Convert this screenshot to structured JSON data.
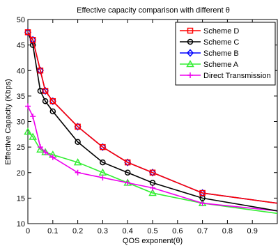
{
  "chart_data": {
    "type": "line",
    "title": "Effective capacity comparison with different θ",
    "xlabel": "QOS exponent(θ)",
    "ylabel": "Effective Capacity (Kbps)",
    "xlim": [
      0,
      1
    ],
    "ylim": [
      10,
      50
    ],
    "x_ticks": [
      0,
      0.1,
      0.2,
      0.3,
      0.4,
      0.5,
      0.6,
      0.7,
      0.8,
      0.9
    ],
    "x_tick_labels": [
      "0",
      "0.1",
      "0.2",
      "0.3",
      "0.4",
      "0.5",
      "0.6",
      "0.7",
      "0.8",
      "0.9"
    ],
    "y_ticks": [
      10,
      15,
      20,
      25,
      30,
      35,
      40,
      45,
      50
    ],
    "y_tick_labels": [
      "10",
      "15",
      "20",
      "25",
      "30",
      "35",
      "40",
      "45",
      "50"
    ],
    "grid": false,
    "legend_position": "top-right",
    "series": [
      {
        "name": "Scheme D",
        "color": "#ff0000",
        "marker": "square",
        "x": [
          0,
          0.02,
          0.05,
          0.07,
          0.1,
          0.2,
          0.3,
          0.4,
          0.5,
          0.7,
          1.0
        ],
        "y": [
          47.5,
          46.0,
          40.0,
          36.0,
          34.0,
          29.0,
          25.0,
          22.0,
          20.0,
          16.0,
          14.0
        ]
      },
      {
        "name": "Scheme C",
        "color": "#000000",
        "marker": "circle",
        "x": [
          0,
          0.02,
          0.05,
          0.07,
          0.1,
          0.2,
          0.3,
          0.4,
          0.5,
          0.7,
          1.0
        ],
        "y": [
          47.5,
          45.0,
          36.0,
          34.0,
          32.0,
          26.0,
          22.0,
          20.0,
          18.0,
          15.0,
          12.5
        ]
      },
      {
        "name": "Scheme B",
        "color": "#0000ff",
        "marker": "diamond",
        "x": [
          0,
          0.02,
          0.05,
          0.07,
          0.1,
          0.2,
          0.3,
          0.4,
          0.5,
          0.7,
          1.0
        ],
        "y": [
          47.5,
          46.0,
          40.0,
          36.0,
          34.0,
          29.0,
          25.0,
          22.0,
          20.0,
          16.0,
          14.0
        ]
      },
      {
        "name": "Scheme A",
        "color": "#33ee33",
        "marker": "triangle",
        "x": [
          0,
          0.02,
          0.05,
          0.07,
          0.1,
          0.2,
          0.3,
          0.4,
          0.5,
          0.7,
          1.0
        ],
        "y": [
          28.0,
          27.0,
          24.5,
          24.0,
          23.5,
          22.0,
          20.0,
          18.0,
          16.0,
          14.0,
          12.0
        ]
      },
      {
        "name": "Direct Transmission",
        "color": "#ee00ee",
        "marker": "plus",
        "x": [
          0,
          0.02,
          0.05,
          0.07,
          0.1,
          0.2,
          0.3,
          0.4,
          0.5,
          0.7,
          1.0
        ],
        "y": [
          33.0,
          31.0,
          25.0,
          24.0,
          23.0,
          20.0,
          19.0,
          18.0,
          17.0,
          14.0,
          12.5
        ]
      }
    ]
  }
}
